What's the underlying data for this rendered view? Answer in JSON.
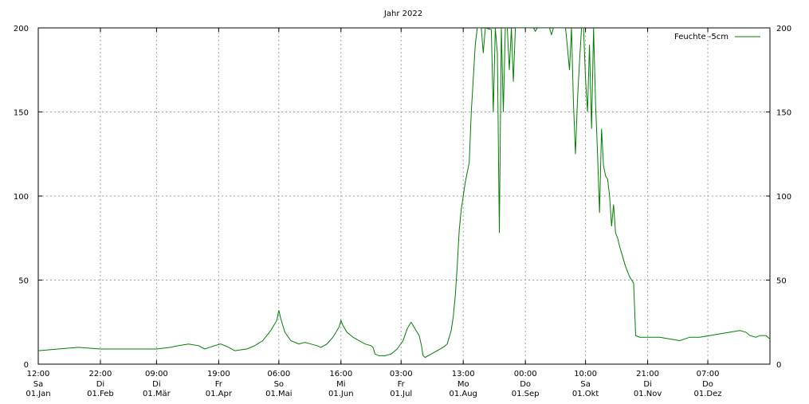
{
  "chart_data": {
    "type": "line",
    "title": "Jahr 2022",
    "xlabel": "",
    "ylabel": "",
    "ylim": [
      0,
      200
    ],
    "xlim_days": [
      0,
      365
    ],
    "yticks": [
      "0",
      "50",
      "100",
      "150",
      "200"
    ],
    "xticks": [
      {
        "day": 0,
        "time": "12:00",
        "weekday": "Sa",
        "date": "01.Jan"
      },
      {
        "day": 31,
        "time": "22:00",
        "weekday": "Di",
        "date": "01.Feb"
      },
      {
        "day": 59,
        "time": "09:00",
        "weekday": "Di",
        "date": "01.Mär"
      },
      {
        "day": 90,
        "time": "19:00",
        "weekday": "Fr",
        "date": "01.Apr"
      },
      {
        "day": 120,
        "time": "06:00",
        "weekday": "So",
        "date": "01.Mai"
      },
      {
        "day": 151,
        "time": "16:00",
        "weekday": "Mi",
        "date": "01.Jun"
      },
      {
        "day": 181,
        "time": "03:00",
        "weekday": "Fr",
        "date": "01.Jul"
      },
      {
        "day": 212,
        "time": "13:00",
        "weekday": "Mo",
        "date": "01.Aug"
      },
      {
        "day": 243,
        "time": "00:00",
        "weekday": "Do",
        "date": "01.Sep"
      },
      {
        "day": 273,
        "time": "10:00",
        "weekday": "Sa",
        "date": "01.Okt"
      },
      {
        "day": 304,
        "time": "21:00",
        "weekday": "Di",
        "date": "01.Nov"
      },
      {
        "day": 334,
        "time": "07:00",
        "weekday": "Do",
        "date": "01.Dez"
      }
    ],
    "grid": true,
    "legend_position": "top-right",
    "series": [
      {
        "name": "Feuchte -5cm",
        "color": "#008000",
        "points": [
          [
            0,
            8
          ],
          [
            10,
            9
          ],
          [
            20,
            10
          ],
          [
            31,
            9
          ],
          [
            40,
            9
          ],
          [
            50,
            9
          ],
          [
            59,
            9
          ],
          [
            66,
            10
          ],
          [
            70,
            11
          ],
          [
            75,
            12
          ],
          [
            80,
            11
          ],
          [
            83,
            9
          ],
          [
            88,
            11
          ],
          [
            91,
            12
          ],
          [
            95,
            10
          ],
          [
            98,
            8
          ],
          [
            104,
            9
          ],
          [
            108,
            11
          ],
          [
            112,
            14
          ],
          [
            116,
            20
          ],
          [
            119,
            26
          ],
          [
            120,
            32
          ],
          [
            121,
            27
          ],
          [
            123,
            19
          ],
          [
            126,
            14
          ],
          [
            130,
            12
          ],
          [
            133,
            13
          ],
          [
            136,
            12
          ],
          [
            139,
            11
          ],
          [
            141,
            10
          ],
          [
            144,
            12
          ],
          [
            147,
            16
          ],
          [
            150,
            22
          ],
          [
            151,
            26
          ],
          [
            152,
            23
          ],
          [
            154,
            19
          ],
          [
            157,
            16
          ],
          [
            160,
            14
          ],
          [
            163,
            12
          ],
          [
            166,
            11
          ],
          [
            167,
            10
          ],
          [
            168,
            6
          ],
          [
            170,
            5
          ],
          [
            173,
            5
          ],
          [
            176,
            6
          ],
          [
            179,
            9
          ],
          [
            182,
            14
          ],
          [
            184,
            21
          ],
          [
            186,
            25
          ],
          [
            188,
            21
          ],
          [
            190,
            17
          ],
          [
            191,
            12
          ],
          [
            192,
            5
          ],
          [
            193,
            4
          ],
          [
            196,
            6
          ],
          [
            199,
            8
          ],
          [
            202,
            10
          ],
          [
            204,
            12
          ],
          [
            206,
            20
          ],
          [
            207,
            28
          ],
          [
            208,
            40
          ],
          [
            209,
            58
          ],
          [
            210,
            80
          ],
          [
            211,
            92
          ],
          [
            212,
            100
          ],
          [
            213,
            108
          ],
          [
            215,
            120
          ],
          [
            216,
            150
          ],
          [
            217,
            170
          ],
          [
            218,
            190
          ],
          [
            219,
            200
          ],
          [
            221,
            200
          ],
          [
            222,
            185
          ],
          [
            223,
            200
          ],
          [
            226,
            199
          ],
          [
            227,
            150
          ],
          [
            228,
            200
          ],
          [
            229,
            185
          ],
          [
            230,
            78
          ],
          [
            231,
            200
          ],
          [
            232,
            150
          ],
          [
            233,
            200
          ],
          [
            234,
            200
          ],
          [
            235,
            175
          ],
          [
            236,
            200
          ],
          [
            237,
            168
          ],
          [
            238,
            200
          ],
          [
            241,
            200
          ],
          [
            244,
            200
          ],
          [
            247,
            200
          ],
          [
            248,
            198
          ],
          [
            249,
            200
          ],
          [
            252,
            200
          ],
          [
            255,
            200
          ],
          [
            256,
            196
          ],
          [
            257,
            200
          ],
          [
            260,
            200
          ],
          [
            263,
            200
          ],
          [
            264,
            188
          ],
          [
            265,
            175
          ],
          [
            266,
            200
          ],
          [
            267,
            155
          ],
          [
            268,
            125
          ],
          [
            269,
            158
          ],
          [
            270,
            180
          ],
          [
            271,
            200
          ],
          [
            272,
            200
          ],
          [
            273,
            170
          ],
          [
            274,
            150
          ],
          [
            275,
            190
          ],
          [
            276,
            140
          ],
          [
            277,
            200
          ],
          [
            278,
            155
          ],
          [
            279,
            125
          ],
          [
            280,
            90
          ],
          [
            281,
            140
          ],
          [
            282,
            118
          ],
          [
            283,
            112
          ],
          [
            284,
            110
          ],
          [
            285,
            100
          ],
          [
            286,
            82
          ],
          [
            287,
            95
          ],
          [
            288,
            78
          ],
          [
            289,
            75
          ],
          [
            290,
            70
          ],
          [
            291,
            66
          ],
          [
            292,
            62
          ],
          [
            293,
            58
          ],
          [
            294,
            55
          ],
          [
            295,
            52
          ],
          [
            296,
            50
          ],
          [
            297,
            48
          ],
          [
            298,
            17
          ],
          [
            300,
            16
          ],
          [
            305,
            16
          ],
          [
            310,
            16
          ],
          [
            315,
            15
          ],
          [
            320,
            14
          ],
          [
            325,
            16
          ],
          [
            330,
            16
          ],
          [
            335,
            17
          ],
          [
            340,
            18
          ],
          [
            345,
            19
          ],
          [
            350,
            20
          ],
          [
            353,
            19
          ],
          [
            355,
            17
          ],
          [
            358,
            16
          ],
          [
            360,
            17
          ],
          [
            363,
            17
          ],
          [
            365,
            15
          ]
        ]
      }
    ]
  }
}
